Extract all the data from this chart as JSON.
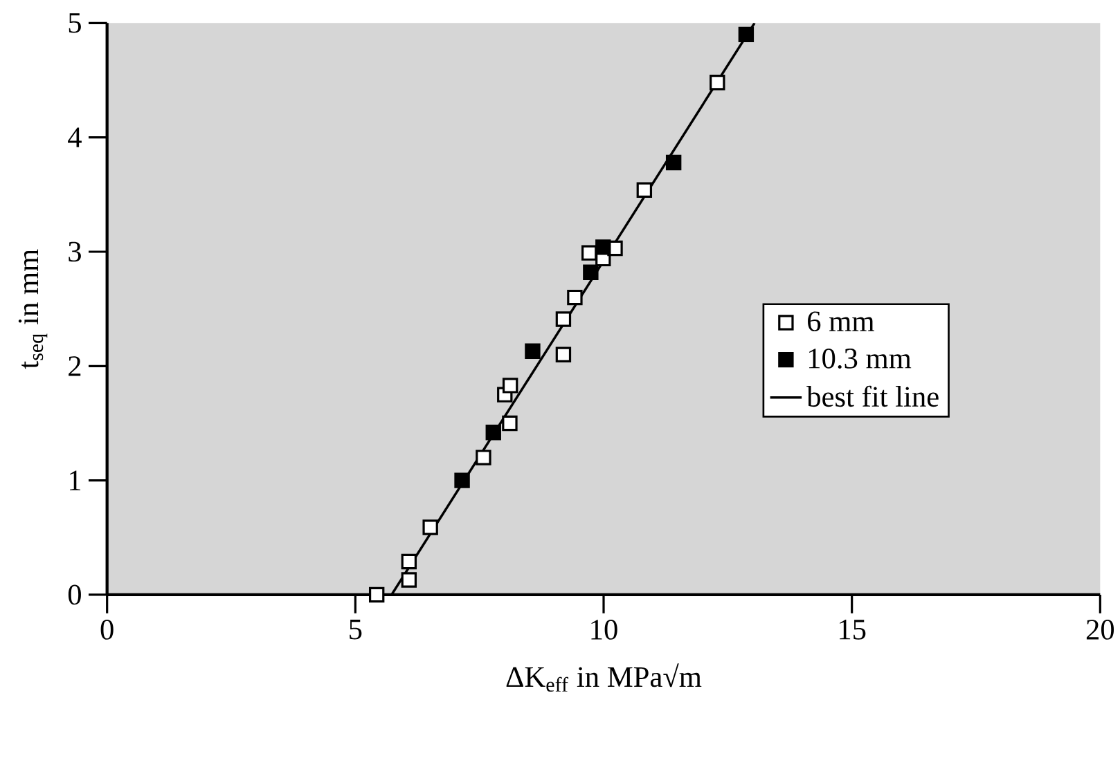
{
  "chart_data": {
    "type": "scatter",
    "xlabel": "ΔK$_{eff}$ in MPa√m",
    "ylabel": "t$_{seq}$ in mm",
    "xlim": [
      0,
      20
    ],
    "ylim": [
      0,
      5
    ],
    "xticks": [
      0,
      5,
      10,
      15,
      20
    ],
    "yticks": [
      0,
      1,
      2,
      3,
      4,
      5
    ],
    "marker": "square",
    "legend": "right",
    "grid": false,
    "series": [
      {
        "name": "6 mm",
        "color": "#ffffff",
        "x": [
          5.43,
          6.08,
          6.08,
          6.51,
          7.58,
          8.11,
          8.01,
          8.12,
          9.19,
          9.19,
          9.42,
          9.71,
          9.99,
          10.23,
          10.82,
          12.29
        ],
        "values": [
          0,
          0.13,
          0.29,
          0.59,
          1.2,
          1.5,
          1.75,
          1.83,
          2.1,
          2.41,
          2.6,
          2.99,
          2.94,
          3.03,
          3.54,
          4.48
        ]
      },
      {
        "name": "10.3 mm",
        "color": "#000000",
        "x": [
          7.15,
          7.78,
          8.57,
          9.74,
          9.99,
          11.41,
          12.87
        ],
        "values": [
          1.0,
          1.42,
          2.13,
          2.82,
          3.04,
          3.78,
          4.9
        ]
      },
      {
        "name": "best fit line",
        "type": "line",
        "marker": "none",
        "color": "#000000",
        "x": [
          5.73,
          13.04
        ],
        "values": [
          0,
          5
        ]
      }
    ]
  }
}
